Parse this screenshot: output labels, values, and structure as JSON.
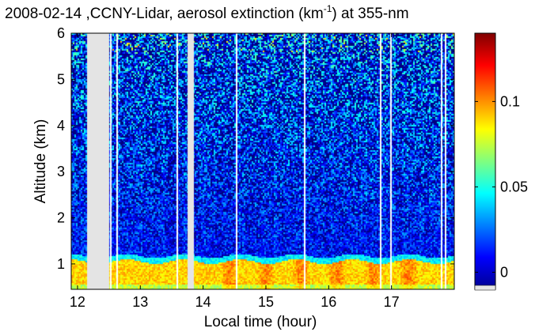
{
  "chart_data": {
    "type": "heatmap",
    "title_main": "2008-02-14 ,CCNY-Lidar, aerosol extinction (km",
    "title_sup": "-1",
    "title_tail": ") at 355-nm",
    "xlabel": "Local time (hour)",
    "ylabel": "Altitude (km)",
    "xlim": [
      11.9,
      18.0
    ],
    "ylim": [
      0.45,
      6.0
    ],
    "xticks": [
      12,
      13,
      14,
      15,
      16,
      17
    ],
    "yticks": [
      1,
      2,
      3,
      4,
      5,
      6
    ],
    "colorbar": {
      "range": [
        -0.01,
        0.14
      ],
      "ticks": [
        0,
        0.05,
        0.1
      ],
      "tick_labels": [
        "0",
        "0.05",
        "0.1"
      ],
      "colormap": "jet"
    },
    "no_data_intervals": [
      [
        12.15,
        12.5
      ],
      [
        13.75,
        13.85
      ]
    ],
    "gap_lines": [
      12.52,
      12.62,
      13.58,
      14.52,
      15.6,
      16.82,
      16.98,
      17.78,
      17.85
    ],
    "boundary_layer_top_km": 1.05,
    "boundary_layer_extinction": 0.09,
    "free_troposphere_extinction": 0.01,
    "grid": false
  }
}
